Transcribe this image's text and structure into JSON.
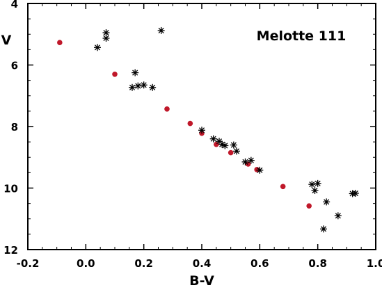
{
  "chart_data": {
    "type": "scatter",
    "title": "Melotte 111",
    "xlabel": "B-V",
    "ylabel": "V",
    "xlim": [
      -0.2,
      1.0
    ],
    "ylim": [
      12,
      4
    ],
    "y_inverted": true,
    "grid": false,
    "x_ticks": [
      "-0.2",
      "0.0",
      "0.2",
      "0.4",
      "0.6",
      "0.8",
      "1.0"
    ],
    "y_ticks": [
      "4",
      "6",
      "8",
      "10",
      "12"
    ],
    "series": [
      {
        "marker": "circle",
        "color": "#c0182a",
        "points": [
          {
            "x": -0.09,
            "y": 5.27
          },
          {
            "x": 0.1,
            "y": 6.3
          },
          {
            "x": 0.28,
            "y": 7.43
          },
          {
            "x": 0.36,
            "y": 7.9
          },
          {
            "x": 0.4,
            "y": 8.22
          },
          {
            "x": 0.45,
            "y": 8.58
          },
          {
            "x": 0.5,
            "y": 8.85
          },
          {
            "x": 0.56,
            "y": 9.22
          },
          {
            "x": 0.59,
            "y": 9.4
          },
          {
            "x": 0.68,
            "y": 9.95
          },
          {
            "x": 0.77,
            "y": 10.58
          }
        ]
      },
      {
        "marker": "asterisk",
        "color": "#000000",
        "points": [
          {
            "x": 0.04,
            "y": 5.43
          },
          {
            "x": 0.07,
            "y": 5.13
          },
          {
            "x": 0.07,
            "y": 4.95
          },
          {
            "x": 0.26,
            "y": 4.88
          },
          {
            "x": 0.17,
            "y": 6.25
          },
          {
            "x": 0.16,
            "y": 6.73
          },
          {
            "x": 0.18,
            "y": 6.68
          },
          {
            "x": 0.2,
            "y": 6.65
          },
          {
            "x": 0.23,
            "y": 6.73
          },
          {
            "x": 0.4,
            "y": 8.12
          },
          {
            "x": 0.44,
            "y": 8.4
          },
          {
            "x": 0.46,
            "y": 8.48
          },
          {
            "x": 0.47,
            "y": 8.58
          },
          {
            "x": 0.48,
            "y": 8.62
          },
          {
            "x": 0.51,
            "y": 8.6
          },
          {
            "x": 0.52,
            "y": 8.8
          },
          {
            "x": 0.55,
            "y": 9.15
          },
          {
            "x": 0.57,
            "y": 9.1
          },
          {
            "x": 0.6,
            "y": 9.42
          },
          {
            "x": 0.78,
            "y": 9.88
          },
          {
            "x": 0.8,
            "y": 9.85
          },
          {
            "x": 0.79,
            "y": 10.08
          },
          {
            "x": 0.83,
            "y": 10.45
          },
          {
            "x": 0.87,
            "y": 10.9
          },
          {
            "x": 0.82,
            "y": 11.33
          },
          {
            "x": 0.93,
            "y": 10.17
          },
          {
            "x": 0.92,
            "y": 10.18
          }
        ]
      }
    ]
  }
}
